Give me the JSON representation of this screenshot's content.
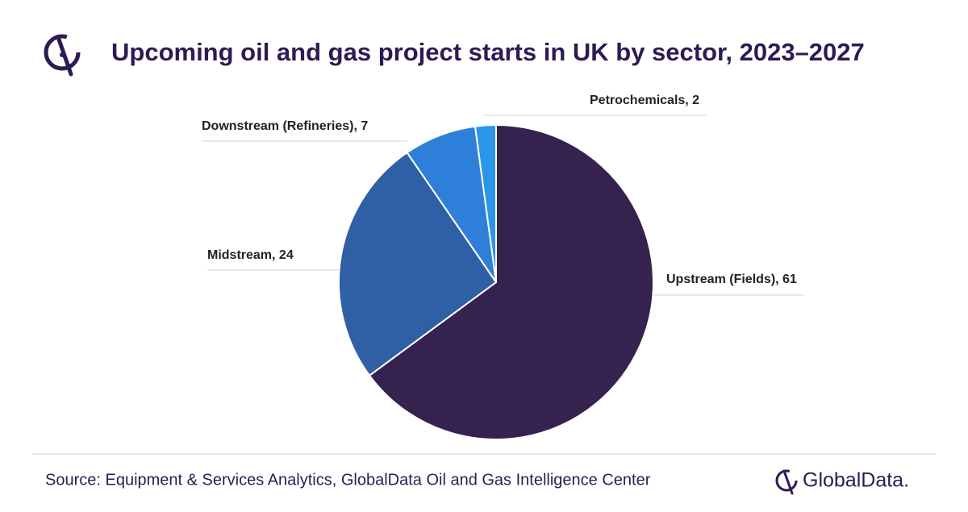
{
  "chart_data": {
    "type": "pie",
    "title": "Upcoming oil and gas project starts in UK by sector, 2023–2027",
    "values": [
      61,
      24,
      7,
      2
    ],
    "value_labels": [
      "Upstream (Fields), 61",
      "Midstream, 24",
      "Downstream (Refineries), 7",
      "Petrochemicals, 2"
    ],
    "colors": [
      "#35224f",
      "#2f5fa5",
      "#2e7fd9",
      "#2a96ea"
    ]
  },
  "footer": {
    "source": "Source: Equipment & Services Analytics, GlobalData Oil and Gas Intelligence Center",
    "brand": "GlobalData."
  }
}
